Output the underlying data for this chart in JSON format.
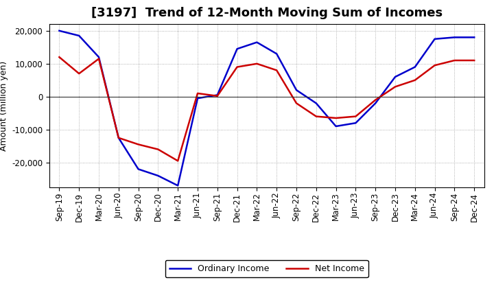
{
  "title": "[3197]  Trend of 12-Month Moving Sum of Incomes",
  "ylabel": "Amount (million yen)",
  "x_labels": [
    "Sep-19",
    "Dec-19",
    "Mar-20",
    "Jun-20",
    "Sep-20",
    "Dec-20",
    "Mar-21",
    "Jun-21",
    "Sep-21",
    "Dec-21",
    "Mar-22",
    "Jun-22",
    "Sep-22",
    "Dec-22",
    "Mar-23",
    "Jun-23",
    "Sep-23",
    "Dec-23",
    "Mar-24",
    "Jun-24",
    "Sep-24",
    "Dec-24"
  ],
  "ordinary_income": [
    20000,
    18500,
    12000,
    -12500,
    -22000,
    -24000,
    -27000,
    -500,
    500,
    14500,
    16500,
    13000,
    2000,
    -2000,
    -9000,
    -8000,
    -2000,
    6000,
    9000,
    17500,
    18000,
    18000
  ],
  "net_income": [
    12000,
    7000,
    11500,
    -12500,
    -14500,
    -16000,
    -19500,
    1000,
    200,
    9000,
    10000,
    8000,
    -2000,
    -6000,
    -6500,
    -6000,
    -1000,
    3000,
    5000,
    9500,
    11000,
    11000
  ],
  "ordinary_color": "#0000cc",
  "net_color": "#cc0000",
  "background_color": "#ffffff",
  "grid_color": "#999999",
  "ylim": [
    -27500,
    22000
  ],
  "yticks": [
    -20000,
    -10000,
    0,
    10000,
    20000
  ],
  "legend_ordinary": "Ordinary Income",
  "legend_net": "Net Income",
  "line_width": 1.8,
  "title_fontsize": 13,
  "axis_fontsize": 9,
  "tick_fontsize": 8.5
}
